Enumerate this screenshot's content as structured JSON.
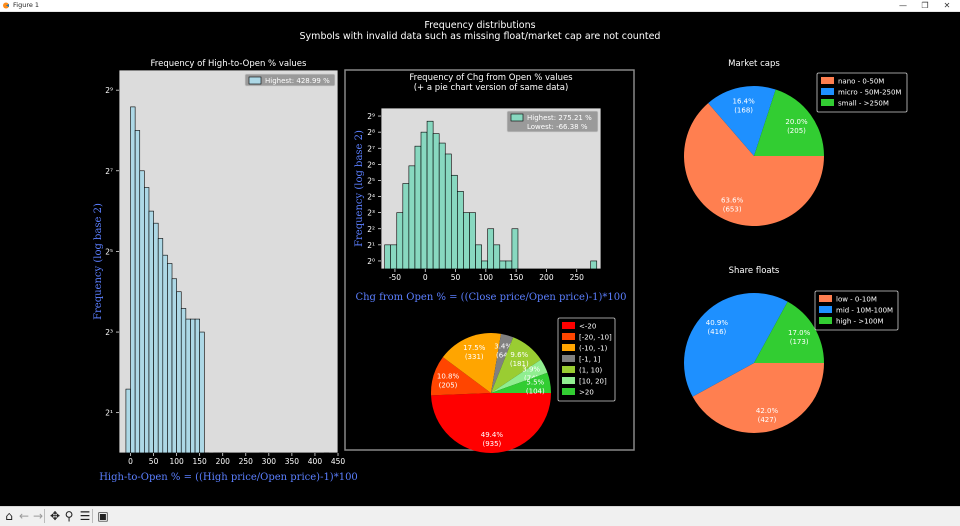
{
  "window": {
    "title": "Figure 1",
    "minimize_glyph": "—",
    "maximize_glyph": "❐",
    "close_glyph": "✕",
    "app_icon": "matplotlib-icon"
  },
  "figure": {
    "suptitle": "Frequency distributions",
    "subtitle": "Symbols with invalid data such as missing float/market cap are not counted"
  },
  "toolbar": {
    "buttons": [
      {
        "name": "home-button",
        "icon": "home-icon",
        "glyph": "⌂"
      },
      {
        "name": "back-button",
        "icon": "back-arrow-icon",
        "glyph": "←"
      },
      {
        "name": "forward-button",
        "icon": "forward-arrow-icon",
        "glyph": "→"
      },
      {
        "name": "pan-button",
        "icon": "pan-icon",
        "glyph": "✥"
      },
      {
        "name": "zoom-button",
        "icon": "zoom-icon",
        "glyph": "⚲"
      },
      {
        "name": "configure-subplots-button",
        "icon": "sliders-icon",
        "glyph": "☰"
      },
      {
        "name": "save-button",
        "icon": "save-icon",
        "glyph": "▣"
      }
    ]
  },
  "colors": {
    "background": "#000000",
    "axes_face": "#dcdcdc",
    "hist1_fill": "#add8e6",
    "hist2_fill": "#88d8c0",
    "label_blue": "#5b7fff",
    "frame": "#888888"
  },
  "chart_data": [
    {
      "type": "bar",
      "title": "Frequency of High-to-Open % values",
      "xlabel": "High-to-Open % = ((High price/Open price)-1)*100",
      "ylabel": "Frequency (log base 2)",
      "yscale": "log2",
      "xlim": [
        -25,
        450
      ],
      "ylim_log2": [
        0,
        9.5
      ],
      "xticks": [
        0,
        50,
        100,
        150,
        200,
        250,
        300,
        350,
        400,
        450
      ],
      "xtick_labels": [
        "0",
        "50",
        "100",
        "150",
        "200",
        "250",
        "300",
        "350",
        "400",
        "450"
      ],
      "yticks_log2": [
        1,
        3,
        5,
        7,
        9
      ],
      "ytick_labels": [
        "2¹",
        "2³",
        "2⁵",
        "2⁷",
        "2⁹"
      ],
      "bin_edges": [
        -10,
        0,
        10,
        20,
        30,
        40,
        50,
        60,
        70,
        80,
        90,
        100,
        110,
        120,
        130,
        140,
        150,
        160,
        170,
        180,
        190,
        200,
        210,
        220,
        230,
        240,
        250,
        260,
        270,
        280,
        290,
        300,
        310,
        320,
        330,
        340,
        350,
        360,
        370,
        380,
        390,
        400,
        410,
        420,
        430
      ],
      "counts": [
        3,
        384,
        256,
        128,
        96,
        64,
        52,
        40,
        30,
        26,
        20,
        16,
        12,
        10,
        10,
        10,
        8,
        1,
        0,
        1,
        1,
        1,
        0,
        0,
        0,
        1,
        0,
        0,
        0,
        1,
        0,
        0,
        0,
        0,
        0,
        0,
        0,
        0,
        0,
        0,
        0,
        0,
        0,
        1
      ],
      "legend": "Highest: 428.99 %",
      "legend_loc": "upper right",
      "grid": false
    },
    {
      "type": "bar",
      "title": "Frequency of Chg from Open % values",
      "title_line2": "(+ a pie chart version of same data)",
      "xlabel": "Chg from Open % = ((Close price/Open price)-1)*100",
      "ylabel": "Frequency (log base 2)",
      "yscale": "log2",
      "xlim": [
        -73,
        290
      ],
      "ylim_log2": [
        -0.5,
        9.5
      ],
      "xticks": [
        -50,
        0,
        50,
        100,
        150,
        200,
        250
      ],
      "xtick_labels": [
        "-50",
        "0",
        "50",
        "100",
        "150",
        "200",
        "250"
      ],
      "yticks_log2": [
        0,
        1,
        2,
        3,
        4,
        5,
        6,
        7,
        8,
        9
      ],
      "ytick_labels": [
        "2⁰",
        "2¹",
        "2²",
        "2³",
        "2⁴",
        "2⁵",
        "2⁶",
        "2⁷",
        "2⁸",
        "2⁹"
      ],
      "bin_edges": [
        -67,
        -57,
        -47,
        -37,
        -27,
        -17,
        -7,
        3,
        13,
        23,
        33,
        43,
        53,
        63,
        73,
        83,
        93,
        103,
        113,
        123,
        133,
        143,
        153,
        163,
        173,
        183,
        193,
        203,
        213,
        223,
        233,
        243,
        253,
        263,
        273,
        283
      ],
      "counts": [
        2,
        2,
        8,
        28,
        60,
        140,
        256,
        410,
        240,
        160,
        100,
        40,
        20,
        8,
        8,
        2,
        1,
        4,
        2,
        1,
        1,
        4,
        0,
        0,
        0,
        0,
        0,
        0,
        0,
        0,
        0,
        0,
        0,
        0,
        1
      ],
      "legend": [
        "Highest: 275.21 %",
        "Lowest: -66.38 %"
      ],
      "legend_loc": "upper right",
      "grid": false
    },
    {
      "type": "pie",
      "labels": [
        "<-20",
        "[-20, -10]",
        "(-10, -1)",
        "[-1, 1]",
        "(1, 10)",
        "[10, 20]",
        ">20"
      ],
      "values": [
        935,
        205,
        331,
        64,
        181,
        74,
        104
      ],
      "percent_labels": [
        "49.4%",
        "10.8%",
        "17.5%",
        "3.4%",
        "9.6%",
        "3.9%",
        "5.5%"
      ],
      "count_labels": [
        "(935)",
        "(205)",
        "(331)",
        "(64)",
        "(181)",
        "(74)",
        "(104)"
      ],
      "colors": [
        "#ff0000",
        "#ff4500",
        "#ffa500",
        "#808080",
        "#9acd32",
        "#90ee90",
        "#32cd32"
      ],
      "legend_loc": "right"
    },
    {
      "type": "pie",
      "title": "Market caps",
      "labels": [
        "nano - 0-50M",
        "micro - 50M-250M",
        "small - >250M"
      ],
      "values": [
        653,
        168,
        205
      ],
      "percent_labels": [
        "63.6%",
        "16.4%",
        "20.0%"
      ],
      "count_labels": [
        "(653)",
        "(168)",
        "(205)"
      ],
      "colors": [
        "#ff7f50",
        "#1e90ff",
        "#32cd32"
      ],
      "legend_loc": "upper right"
    },
    {
      "type": "pie",
      "title": "Share floats",
      "labels": [
        "low - 0-10M",
        "mid - 10M-100M",
        "high - >100M"
      ],
      "values": [
        427,
        416,
        173
      ],
      "percent_labels": [
        "42.0%",
        "40.9%",
        "17.0%"
      ],
      "count_labels": [
        "(427)",
        "(416)",
        "(173)"
      ],
      "colors": [
        "#ff7f50",
        "#1e90ff",
        "#32cd32"
      ],
      "legend_loc": "upper right"
    }
  ]
}
